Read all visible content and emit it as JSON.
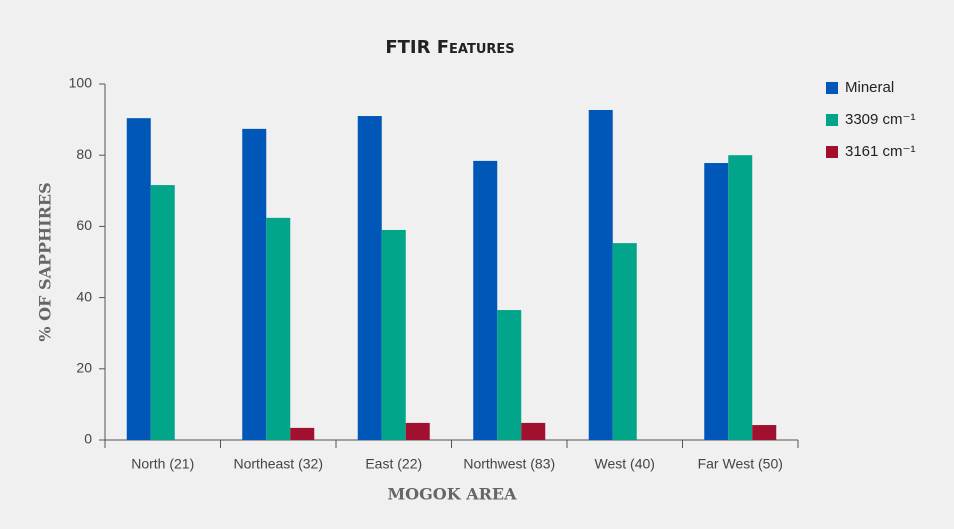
{
  "chart_data": {
    "type": "bar",
    "title": "FTIR Features",
    "x_label": "MOGOK AREA",
    "y_label": "% OF SAPPHIRES",
    "categories": [
      "North (21)",
      "Northeast (32)",
      "East (22)",
      "Northwest (83)",
      "West (40)",
      "Far West (50)"
    ],
    "series": [
      {
        "name": "Mineral",
        "color": "#0057b7",
        "values": [
          90.4,
          87.4,
          91,
          78.4,
          92.7,
          77.8
        ]
      },
      {
        "name": "3309 cm⁻¹",
        "color": "#00a58a",
        "values": [
          71.6,
          62.4,
          59,
          36.5,
          55.3,
          80
        ]
      },
      {
        "name": "3161 cm⁻¹",
        "color": "#a2102f",
        "values": [
          0,
          3.4,
          4.8,
          4.8,
          0,
          4.2
        ]
      }
    ],
    "ylim": [
      0,
      100
    ],
    "yticks": [
      0,
      20,
      40,
      60,
      80,
      100
    ],
    "legend": "right"
  }
}
